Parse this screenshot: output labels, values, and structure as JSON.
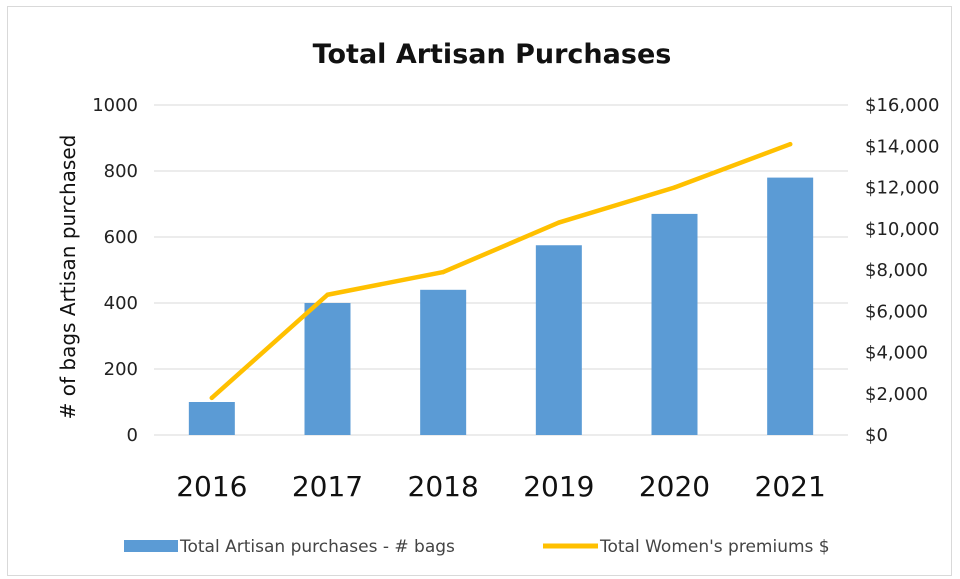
{
  "chart_data": {
    "type": "bar+line",
    "title": "Total Artisan Purchases",
    "xlabel": "",
    "ylabel": "# of bags Artisan purchased",
    "y2label": "",
    "categories": [
      "2016",
      "2017",
      "2018",
      "2019",
      "2020",
      "2021"
    ],
    "ylim": [
      0,
      1000
    ],
    "yticks": [
      "0",
      "200",
      "400",
      "600",
      "800",
      "1000"
    ],
    "y2lim": [
      0,
      16000
    ],
    "y2ticks": [
      "$0",
      "$2,000",
      "$4,000",
      "$6,000",
      "$8,000",
      "$10,000",
      "$12,000",
      "$14,000",
      "$16,000"
    ],
    "grid": true,
    "legend_position": "bottom",
    "series": [
      {
        "name": "Total Artisan purchases - # bags",
        "type": "bar",
        "axis": "left",
        "color": "#5b9bd5",
        "values": [
          100,
          400,
          440,
          575,
          670,
          780
        ]
      },
      {
        "name": "Total Women's premiums $",
        "type": "line",
        "axis": "right",
        "color": "#ffc000",
        "values": [
          1800,
          6800,
          7900,
          10300,
          12000,
          14100
        ]
      }
    ]
  }
}
